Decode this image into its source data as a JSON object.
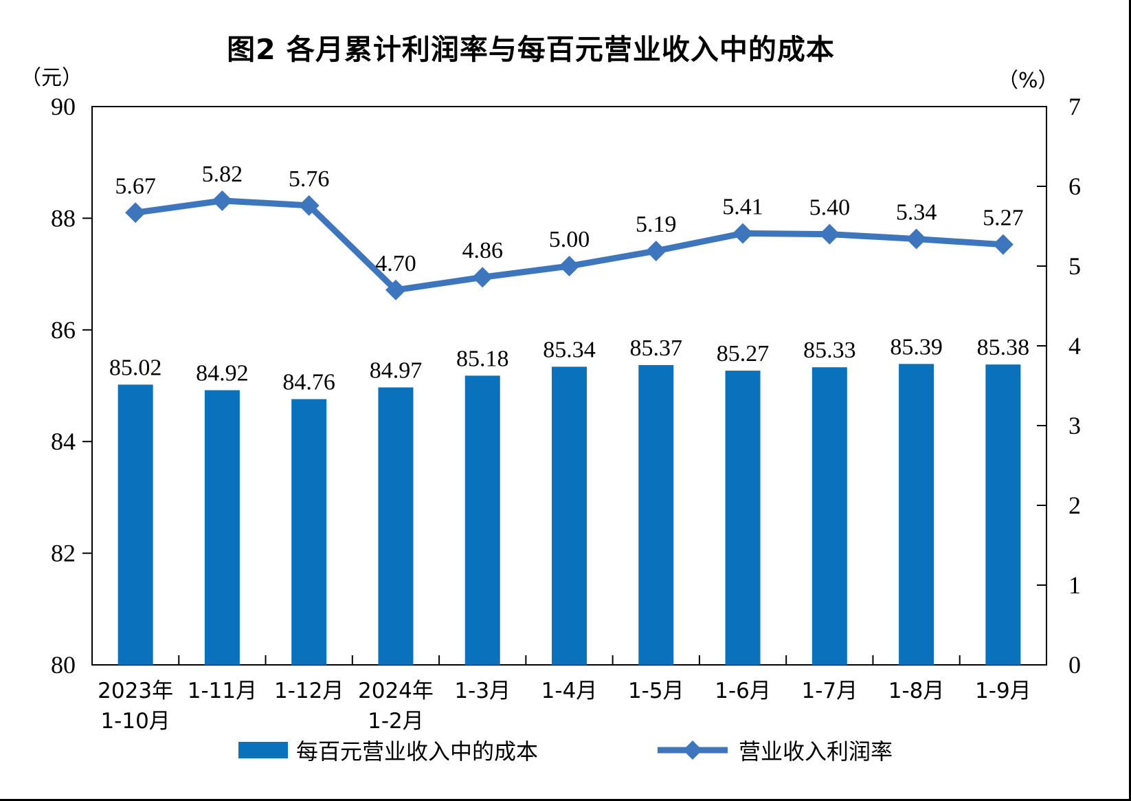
{
  "chart_data": {
    "type": "bar",
    "combo": "bar+line",
    "title": "图2  各月累计利润率与每百元营业收入中的成本",
    "left_axis": {
      "unit": "（元）",
      "min": 80,
      "max": 90,
      "ticks": [
        90,
        88,
        86,
        84,
        82,
        80
      ]
    },
    "right_axis": {
      "unit": "（%）",
      "min": 0,
      "max": 7,
      "ticks": [
        7,
        6,
        5,
        4,
        3,
        2,
        1,
        0
      ]
    },
    "categories": [
      [
        "2023年",
        "1-10月"
      ],
      [
        "1-11月"
      ],
      [
        "1-12月"
      ],
      [
        "2024年",
        "1-2月"
      ],
      [
        "1-3月"
      ],
      [
        "1-4月"
      ],
      [
        "1-5月"
      ],
      [
        "1-6月"
      ],
      [
        "1-7月"
      ],
      [
        "1-8月"
      ],
      [
        "1-9月"
      ]
    ],
    "series": [
      {
        "name": "每百元营业收入中的成本",
        "type": "bar",
        "axis": "left",
        "color": "#0A72BD",
        "values": [
          85.02,
          84.92,
          84.76,
          84.97,
          85.18,
          85.34,
          85.37,
          85.27,
          85.33,
          85.39,
          85.38
        ]
      },
      {
        "name": "营业收入利润率",
        "type": "line",
        "axis": "right",
        "color": "#3E76BE",
        "marker": "diamond",
        "values": [
          5.67,
          5.82,
          5.76,
          4.7,
          4.86,
          5.0,
          5.19,
          5.41,
          5.4,
          5.34,
          5.27
        ]
      }
    ],
    "grid": false,
    "legend_position": "bottom",
    "data_labels": "2dp"
  },
  "legend": {
    "bar_label": "每百元营业收入中的成本",
    "line_label": "营业收入利润率"
  }
}
